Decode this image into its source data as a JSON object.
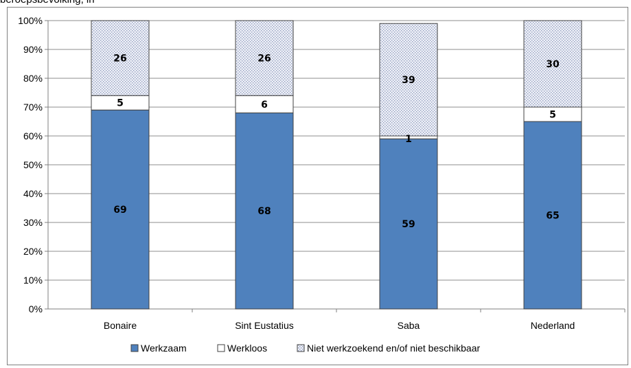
{
  "caption": "beroepsbevolking, in",
  "chart_data": {
    "type": "bar",
    "stacked": true,
    "categories": [
      "Bonaire",
      "Sint Eustatius",
      "Saba",
      "Nederland"
    ],
    "series": [
      {
        "name": "Werkzaam",
        "values": [
          69,
          68,
          59,
          65
        ],
        "color": "#4f81bd",
        "pattern": "solid"
      },
      {
        "name": "Werkloos",
        "values": [
          5,
          6,
          1,
          5
        ],
        "color": "#ffffff",
        "pattern": "solid"
      },
      {
        "name": "Niet werkzoekend en/of niet beschikbaar",
        "values": [
          26,
          26,
          39,
          30
        ],
        "color": "#dfe3ee",
        "pattern": "dotted"
      }
    ],
    "y_ticks": [
      "0%",
      "10%",
      "20%",
      "30%",
      "40%",
      "50%",
      "60%",
      "70%",
      "80%",
      "90%",
      "100%"
    ],
    "ylim": [
      0,
      100
    ],
    "grid": true,
    "legend_position": "bottom"
  }
}
